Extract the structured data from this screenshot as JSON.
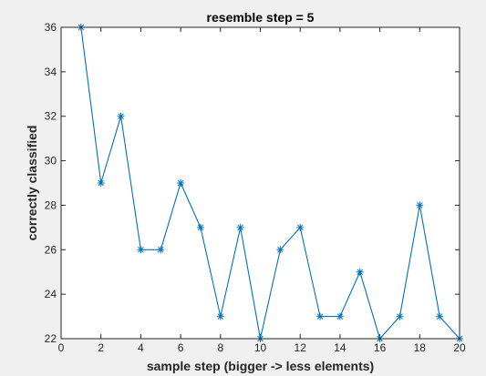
{
  "chart_data": {
    "type": "line",
    "title": "resemble step = 5",
    "xlabel": "sample step (bigger -> less elements)",
    "ylabel": "correctly classified",
    "xlim": [
      0,
      20
    ],
    "ylim": [
      22,
      36
    ],
    "xticks": [
      0,
      2,
      4,
      6,
      8,
      10,
      12,
      14,
      16,
      18,
      20
    ],
    "yticks": [
      22,
      24,
      26,
      28,
      30,
      32,
      34,
      36
    ],
    "grid": false,
    "marker": "asterisk",
    "series": [
      {
        "x": [
          1,
          2,
          3,
          4,
          5,
          6,
          7,
          8,
          9,
          10,
          11,
          12,
          13,
          14,
          15,
          16,
          17,
          18,
          19,
          20
        ],
        "y": [
          36,
          29,
          32,
          26,
          26,
          29,
          27,
          23,
          27,
          22,
          26,
          27,
          23,
          23,
          25,
          22,
          23,
          28,
          23,
          22
        ],
        "color": "#0072BD"
      }
    ]
  },
  "colors": {
    "figure_background": "#f0f0f0",
    "axes_background": "#ffffff",
    "axis_color": "#262626",
    "line_color": "#0072BD"
  }
}
